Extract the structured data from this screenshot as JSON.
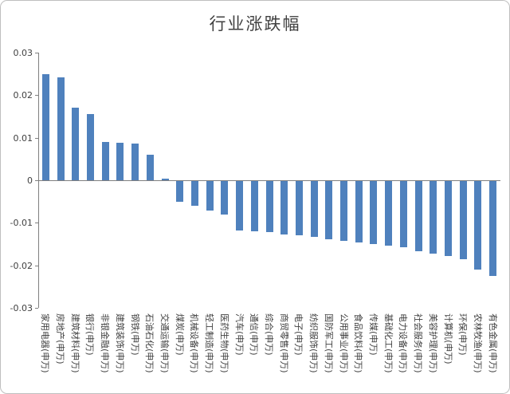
{
  "chart": {
    "bar_color": "#4F81BD",
    "axis_color": "#7f7f7f",
    "text_color": "#404040",
    "background": "#ffffff"
  },
  "chart_data": {
    "type": "bar",
    "title": "行业涨跌幅",
    "xlabel": "",
    "ylabel": "",
    "ylim": [
      -0.03,
      0.03
    ],
    "yticks": [
      0.03,
      0.02,
      0.01,
      0,
      -0.01,
      -0.02,
      -0.03
    ],
    "ytick_labels": [
      "0.03",
      "0.02",
      "0.01",
      "0",
      "-0.01",
      "-0.02",
      "-0.03"
    ],
    "grid": false,
    "legend": "none",
    "categories": [
      "家用电器(申万)",
      "房地产(申万)",
      "建筑材料(申万)",
      "银行(申万)",
      "非银金融(申万)",
      "建筑装饰(申万)",
      "钢铁(申万)",
      "石油石化(申万)",
      "交通运输(申万)",
      "煤炭(申万)",
      "机械设备(申万)",
      "轻工制造(申万)",
      "医药生物(申万)",
      "汽车(申万)",
      "通信(申万)",
      "综合(申万)",
      "商贸零售(申万)",
      "电子(申万)",
      "纺织服饰(申万)",
      "国防军工(申万)",
      "公用事业(申万)",
      "食品饮料(申万)",
      "传媒(申万)",
      "基础化工(申万)",
      "电力设备(申万)",
      "社会服务(申万)",
      "美容护理(申万)",
      "计算机(申万)",
      "环保(申万)",
      "农林牧渔(申万)",
      "有色金属(申万)"
    ],
    "values": [
      0.025,
      0.0242,
      0.017,
      0.0155,
      0.009,
      0.0088,
      0.0086,
      0.006,
      0.0003,
      -0.005,
      -0.006,
      -0.0072,
      -0.008,
      -0.0118,
      -0.012,
      -0.0122,
      -0.0128,
      -0.013,
      -0.0134,
      -0.0139,
      -0.0143,
      -0.0147,
      -0.015,
      -0.0153,
      -0.0157,
      -0.0167,
      -0.0172,
      -0.0178,
      -0.0185,
      -0.021,
      -0.0225
    ]
  }
}
